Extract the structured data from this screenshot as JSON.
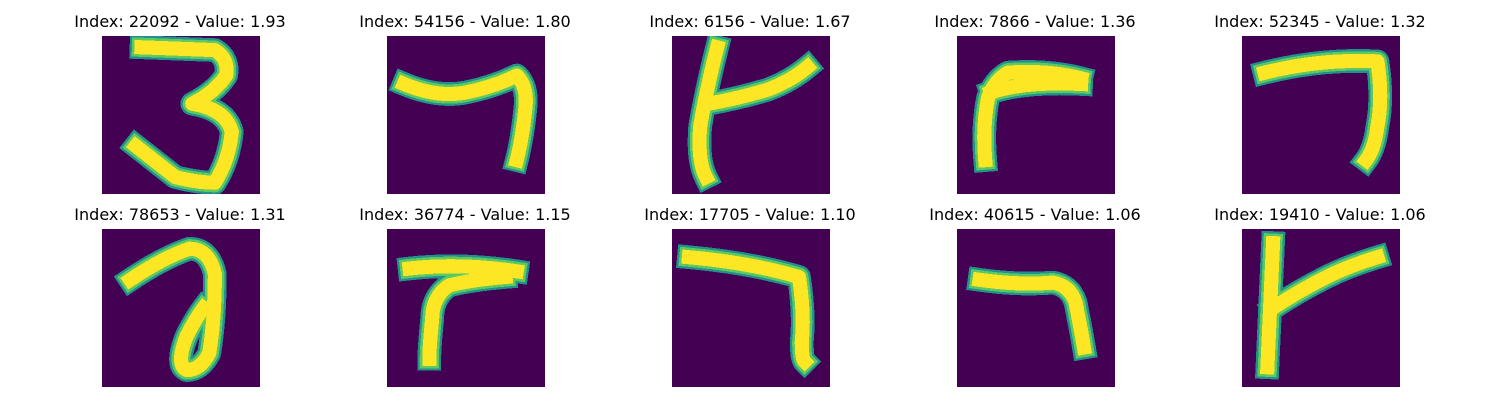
{
  "colors": {
    "background": "#440154",
    "stroke_edge": "#21918c",
    "stroke_mid": "#5ec962",
    "stroke_core": "#fde725"
  },
  "panels": [
    {
      "title": "Index: 22092 - Value: 1.93",
      "icon": "handwritten-digit-3"
    },
    {
      "title": "Index: 54156 - Value: 1.80",
      "icon": "handwritten-digit-7"
    },
    {
      "title": "Index: 6156 - Value: 1.67",
      "icon": "handwritten-stroke-k-shape"
    },
    {
      "title": "Index: 7866 - Value: 1.36",
      "icon": "handwritten-stroke-r-shape"
    },
    {
      "title": "Index: 52345 - Value: 1.32",
      "icon": "handwritten-digit-7"
    },
    {
      "title": "Index: 78653 - Value: 1.31",
      "icon": "handwritten-digit-9"
    },
    {
      "title": "Index: 36774 - Value: 1.15",
      "icon": "handwritten-digit-7"
    },
    {
      "title": "Index: 17705 - Value: 1.10",
      "icon": "handwritten-digit-7"
    },
    {
      "title": "Index: 40615 - Value: 1.06",
      "icon": "handwritten-digit-7"
    },
    {
      "title": "Index: 19410 - Value: 1.06",
      "icon": "handwritten-stroke-k-shape"
    }
  ]
}
